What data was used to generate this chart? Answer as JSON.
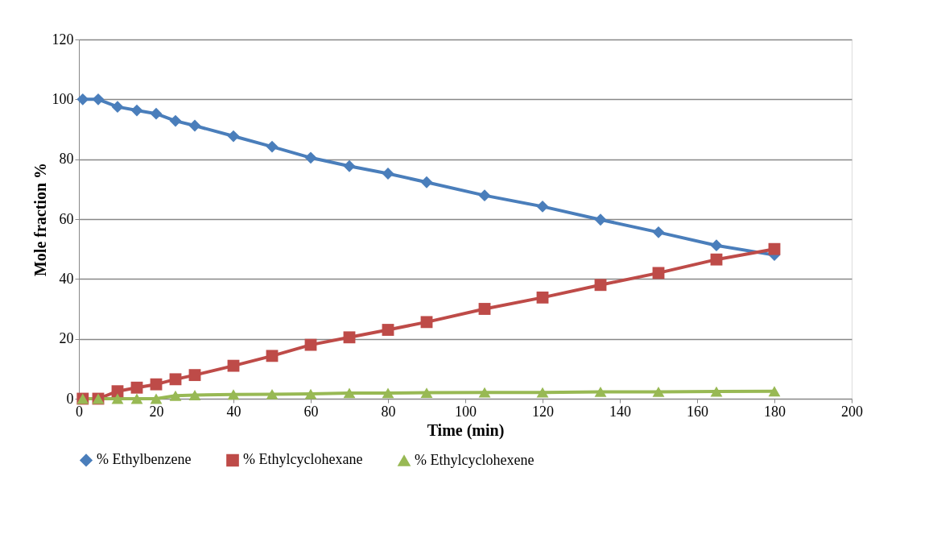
{
  "chart_data": {
    "type": "line",
    "xlabel": "Time (min)",
    "ylabel": "Mole fraction %",
    "x": [
      1,
      5,
      10,
      15,
      20,
      25,
      30,
      40,
      50,
      60,
      70,
      80,
      90,
      105,
      120,
      135,
      150,
      165,
      180
    ],
    "series": [
      {
        "name": "% Ethylbenzene",
        "color": "#4a7ebb",
        "marker": "diamond",
        "values": [
          100,
          100,
          97.5,
          96.3,
          95.2,
          92.8,
          91.2,
          87.7,
          84.2,
          80.5,
          77.7,
          75.2,
          72.3,
          67.9,
          64.2,
          59.8,
          55.6,
          51.2,
          48
        ]
      },
      {
        "name": "% Ethylcyclohexane",
        "color": "#be4b48",
        "marker": "square",
        "values": [
          0,
          0,
          2.5,
          3.7,
          4.8,
          6.5,
          7.9,
          11,
          14.3,
          18,
          20.5,
          23,
          25.6,
          30,
          33.8,
          38,
          42,
          46.5,
          50
        ]
      },
      {
        "name": "% Ethylcyclohexene",
        "color": "#98b954",
        "marker": "triangle",
        "values": [
          0,
          0,
          0,
          0,
          0,
          1.0,
          1.2,
          1.4,
          1.5,
          1.6,
          1.9,
          1.9,
          2.0,
          2.1,
          2.1,
          2.3,
          2.3,
          2.4,
          2.5
        ]
      }
    ],
    "xlim": [
      0,
      200
    ],
    "xticks": [
      0,
      20,
      40,
      60,
      80,
      100,
      120,
      140,
      160,
      180,
      200
    ],
    "ylim": [
      0,
      120
    ],
    "yticks": [
      0,
      20,
      40,
      60,
      80,
      100,
      120
    ],
    "grid": "y",
    "legend": "bottom",
    "line_style": "solid"
  }
}
